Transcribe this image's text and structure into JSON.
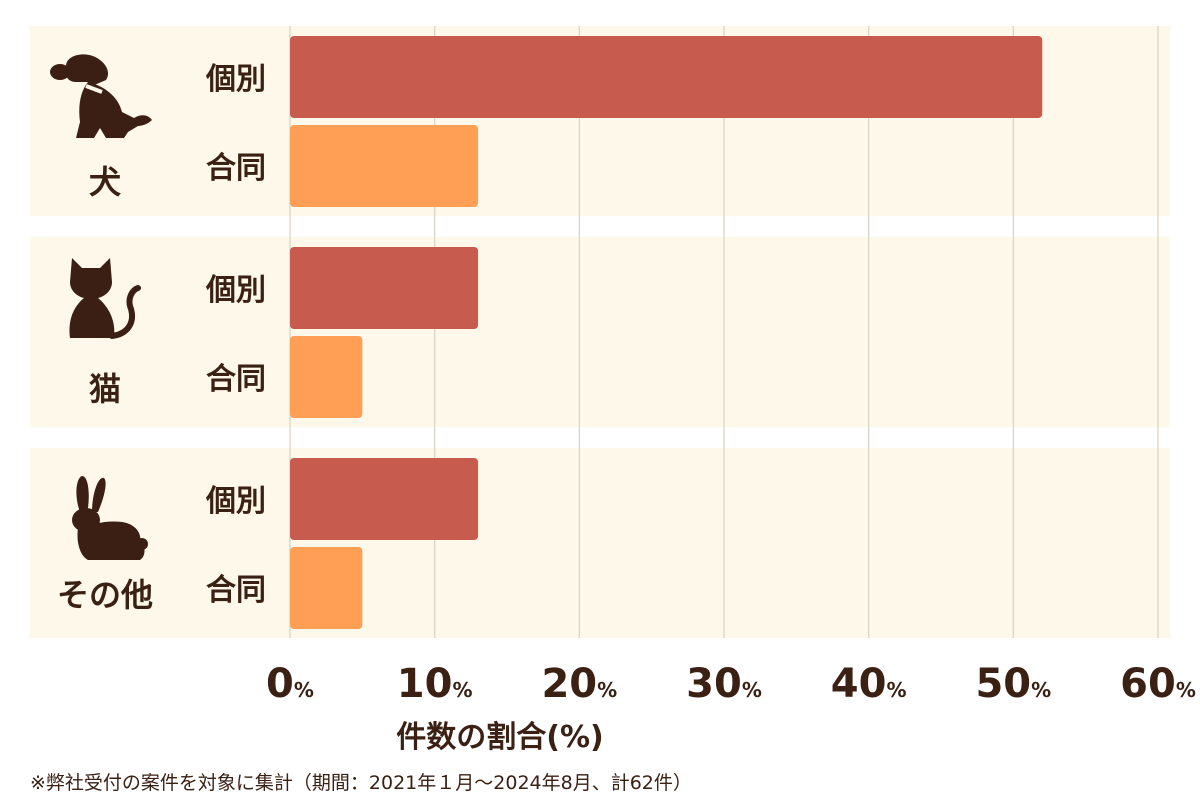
{
  "colors": {
    "panel_bg": "#fdf8ea",
    "gridline": "#d8d2c4",
    "individual": "#c75b4e",
    "joint": "#ff9f55",
    "text": "#3b2014",
    "icon": "#3b1f14"
  },
  "chart_data": {
    "type": "bar",
    "orientation": "horizontal",
    "xlabel": "件数の割合(%)",
    "xlim": [
      0,
      60
    ],
    "xticks": [
      {
        "value": 0,
        "num": "0",
        "unit": "%"
      },
      {
        "value": 10,
        "num": "10",
        "unit": "%"
      },
      {
        "value": 20,
        "num": "20",
        "unit": "%"
      },
      {
        "value": 30,
        "num": "30",
        "unit": "%"
      },
      {
        "value": 40,
        "num": "40",
        "unit": "%"
      },
      {
        "value": 50,
        "num": "50",
        "unit": "%"
      },
      {
        "value": 60,
        "num": "60",
        "unit": "%"
      }
    ],
    "grid": true,
    "groups": [
      {
        "label": "犬",
        "icon": "dog-icon",
        "bars": [
          {
            "label": "個別",
            "kind": "individual",
            "value": 52
          },
          {
            "label": "合同",
            "kind": "joint",
            "value": 13
          }
        ]
      },
      {
        "label": "猫",
        "icon": "cat-icon",
        "bars": [
          {
            "label": "個別",
            "kind": "individual",
            "value": 13
          },
          {
            "label": "合同",
            "kind": "joint",
            "value": 5
          }
        ]
      },
      {
        "label": "その他",
        "icon": "rabbit-icon",
        "bars": [
          {
            "label": "個別",
            "kind": "individual",
            "value": 13
          },
          {
            "label": "合同",
            "kind": "joint",
            "value": 5
          }
        ]
      }
    ]
  },
  "footnote": "※弊社受付の案件を対象に集計（期間：2021年１月～2024年8月、計62件）"
}
